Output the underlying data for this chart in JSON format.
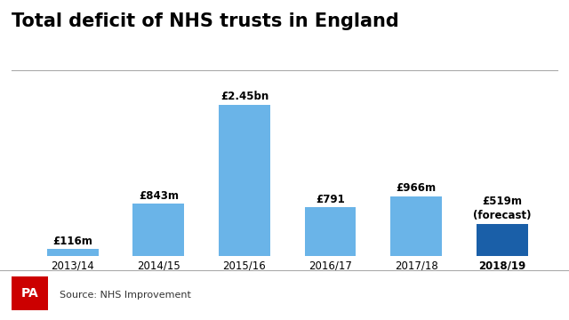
{
  "categories": [
    "2013/14",
    "2014/15",
    "2015/16",
    "2016/17",
    "2017/18",
    "2018/19"
  ],
  "values": [
    116,
    843,
    2450,
    791,
    966,
    519
  ],
  "labels": [
    "£116m",
    "£843m",
    "£2.45bn",
    "£791",
    "£966m",
    "£519m\n(forecast)"
  ],
  "bar_colors": [
    "#6ab4e8",
    "#6ab4e8",
    "#6ab4e8",
    "#6ab4e8",
    "#6ab4e8",
    "#1a5fa8"
  ],
  "title": "Total deficit of NHS trusts in England",
  "title_fontsize": 15,
  "label_fontsize": 8.5,
  "tick_fontsize": 8.5,
  "background_color": "#ffffff",
  "source_text": "Source: NHS Improvement",
  "pa_box_color": "#cc0000",
  "pa_text_color": "#ffffff",
  "ylim": [
    0,
    2900
  ],
  "last_category_bold": true
}
